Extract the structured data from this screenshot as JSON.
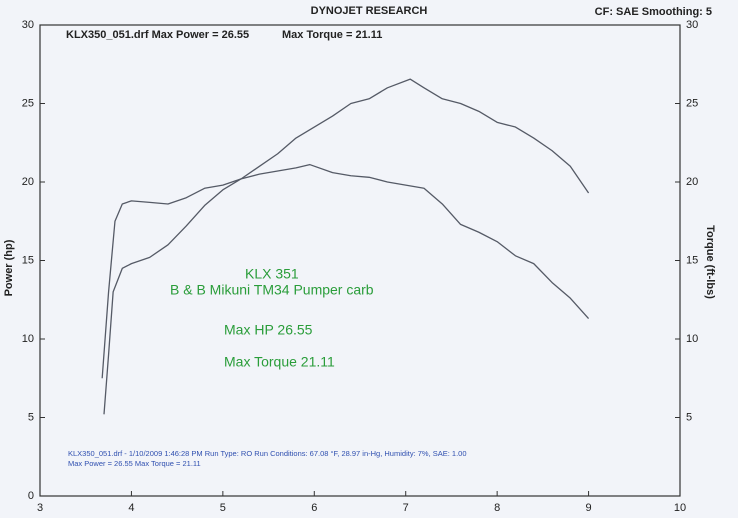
{
  "chart_data": {
    "type": "line",
    "title": "DYNOJET RESEARCH",
    "header_right": "CF: SAE  Smoothing: 5",
    "header_notes": [
      "KLX350_051.drf Max Power = 26.55",
      "Max Torque = 21.11"
    ],
    "y_label": "Power (hp)",
    "y2_label": "Torque (ft-lbs)",
    "annotations": [
      "KLX 351",
      "B & B Mikuni TM34 Pumper carb",
      "Max HP 26.55",
      "Max Torque 21.11"
    ],
    "footer": [
      "KLX350_051.drf - 1/10/2009 1:46:28 PM  Run Type: RO  Run Conditions: 67.08 °F, 28.97 in-Hg,  Humidity:  7%, SAE: 1.00",
      "Max Power = 26.55  Max Torque = 21.11"
    ],
    "xlim": [
      3,
      10
    ],
    "xticks": [
      3,
      4,
      5,
      6,
      7,
      8,
      9,
      10
    ],
    "ylim": [
      0,
      30
    ],
    "yticks": [
      0,
      5,
      10,
      15,
      20,
      25,
      30
    ],
    "y2lim": [
      0,
      30
    ],
    "y2ticks": [
      5,
      10,
      15,
      20,
      25,
      30
    ],
    "grid": false,
    "series": [
      {
        "color": "#555a66",
        "x": [
          3.7,
          3.75,
          3.8,
          3.9,
          4.0,
          4.2,
          4.4,
          4.6,
          4.8,
          5.0,
          5.2,
          5.4,
          5.6,
          5.8,
          6.0,
          6.2,
          6.4,
          6.6,
          6.8,
          7.05,
          7.2,
          7.4,
          7.6,
          7.8,
          8.0,
          8.2,
          8.4,
          8.6,
          8.8,
          9.0
        ],
        "values": [
          5.2,
          9,
          13,
          14.5,
          14.8,
          15.2,
          16,
          17.2,
          18.5,
          19.5,
          20.2,
          21,
          21.8,
          22.8,
          23.5,
          24.2,
          25,
          25.3,
          26,
          26.55,
          26,
          25.3,
          25,
          24.5,
          23.8,
          23.5,
          22.8,
          22,
          21,
          19.3
        ]
      },
      {
        "color": "#555a66",
        "axis": "y2",
        "x": [
          3.68,
          3.75,
          3.82,
          3.9,
          4.0,
          4.2,
          4.4,
          4.6,
          4.8,
          5.0,
          5.2,
          5.4,
          5.6,
          5.8,
          5.95,
          6.2,
          6.4,
          6.6,
          6.8,
          7.0,
          7.2,
          7.4,
          7.6,
          7.8,
          8.0,
          8.2,
          8.4,
          8.6,
          8.8,
          9.0
        ],
        "values": [
          7.5,
          13,
          17.5,
          18.6,
          18.8,
          18.7,
          18.6,
          19,
          19.6,
          19.8,
          20.2,
          20.5,
          20.7,
          20.9,
          21.11,
          20.6,
          20.4,
          20.3,
          20,
          19.8,
          19.6,
          18.6,
          17.3,
          16.8,
          16.2,
          15.3,
          14.8,
          13.6,
          12.6,
          11.3
        ]
      }
    ]
  }
}
